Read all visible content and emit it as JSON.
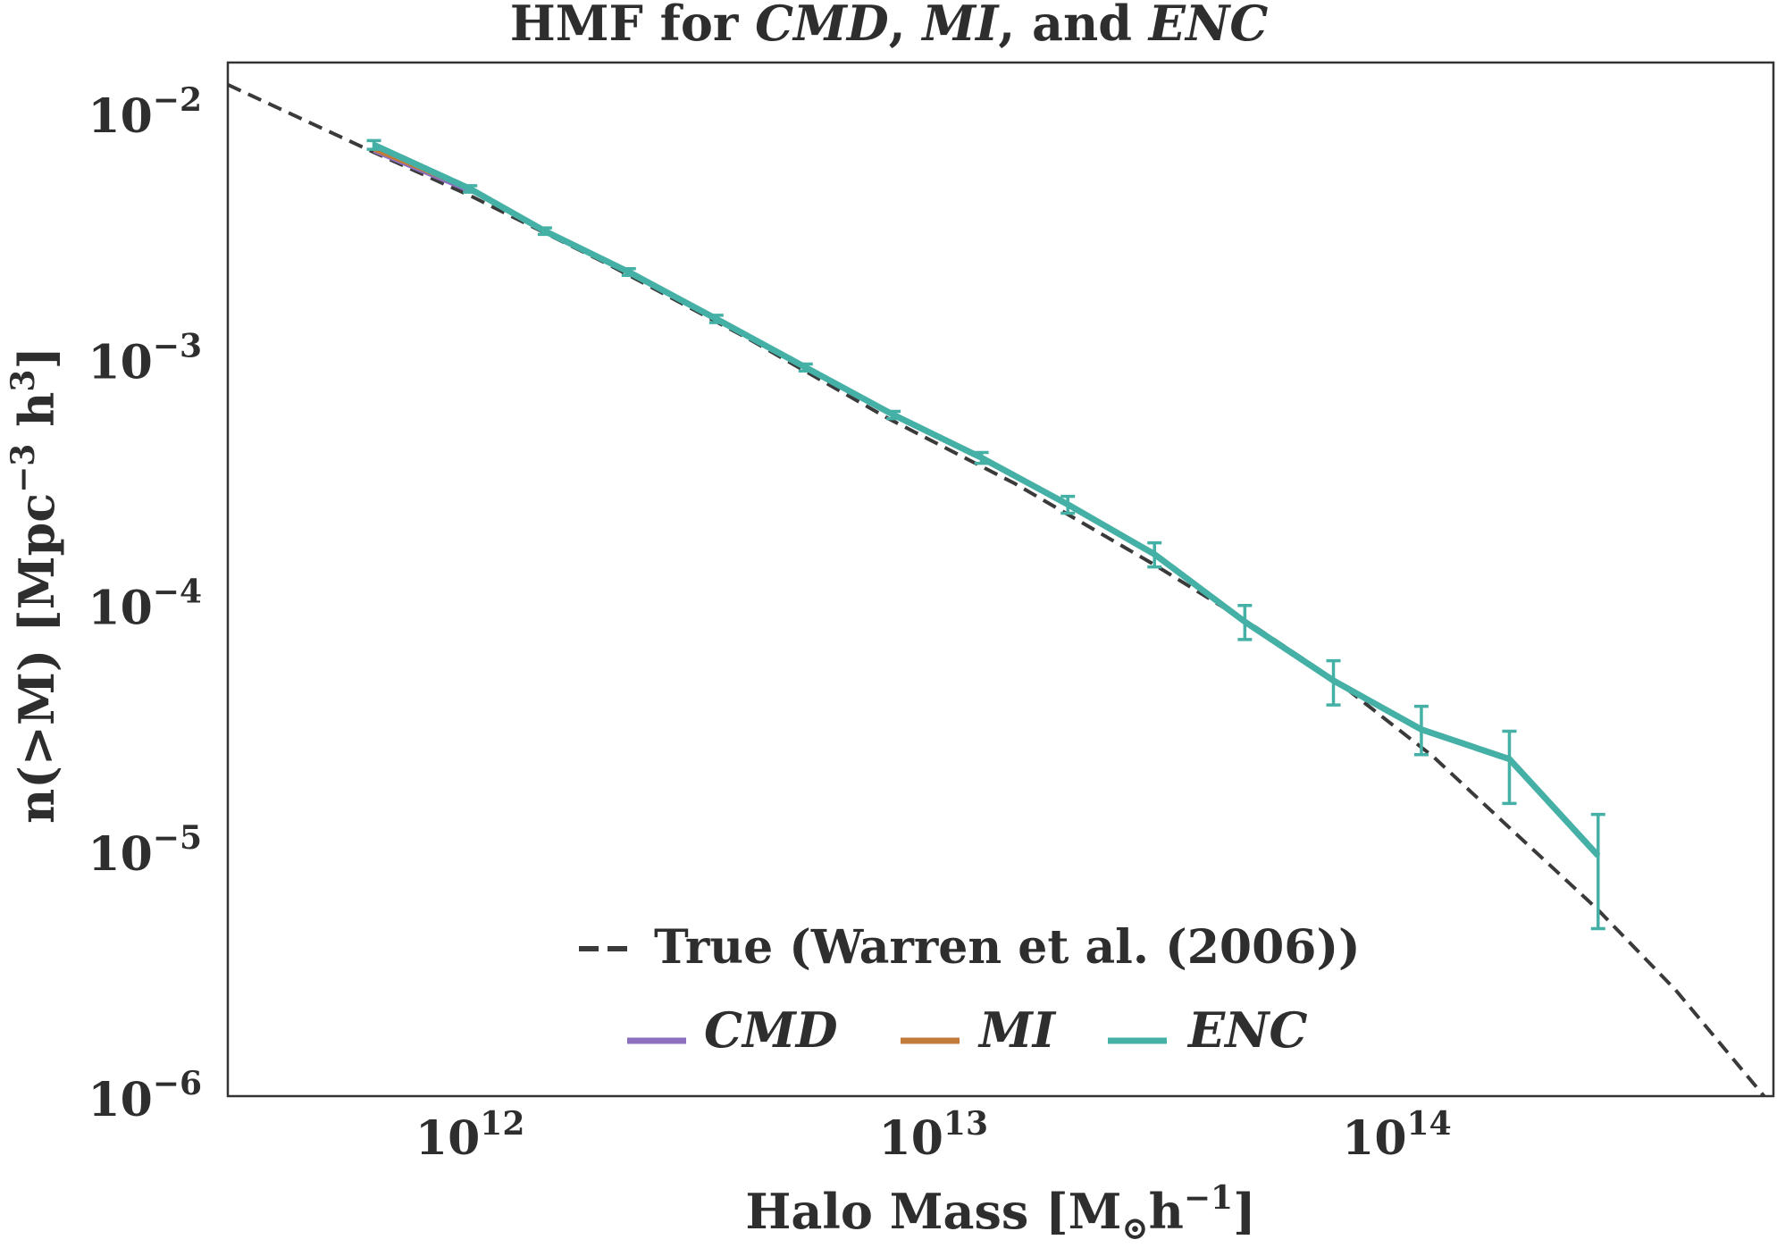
{
  "chart_data": {
    "type": "line",
    "title": {
      "prefix": "HMF for ",
      "a": "CMD",
      "sep1": ", ",
      "b": "MI",
      "sep2": ", and ",
      "c": "ENC"
    },
    "xlabel": {
      "main": "Halo Mass [M",
      "sub": "⊙",
      "h": "h",
      "exp": "−1",
      "close": "]"
    },
    "ylabel": {
      "a": "n(>M) [Mpc",
      "exp1": "−3",
      "b": " h",
      "exp2": "3",
      "c": "]"
    },
    "xscale": "log",
    "yscale": "log",
    "xlim": [
      300000000000.0,
      650000000000000.0
    ],
    "ylim": [
      1e-06,
      0.016
    ],
    "x_ticks": [
      {
        "value": 1000000000000.0,
        "base": "10",
        "exp": "12"
      },
      {
        "value": 10000000000000.0,
        "base": "10",
        "exp": "13"
      },
      {
        "value": 100000000000000.0,
        "base": "10",
        "exp": "14"
      }
    ],
    "y_ticks": [
      {
        "value": 0.01,
        "base": "10",
        "exp": "−2"
      },
      {
        "value": 0.001,
        "base": "10",
        "exp": "−3"
      },
      {
        "value": 0.0001,
        "base": "10",
        "exp": "−4"
      },
      {
        "value": 1e-05,
        "base": "10",
        "exp": "−5"
      },
      {
        "value": 1e-06,
        "base": "10",
        "exp": "−6"
      }
    ],
    "grid": false,
    "legend_position": "bottom-center",
    "true_curve": {
      "name": "True (Warren et al. (2006))",
      "style": "dashed",
      "color": "#3a3a3a",
      "x": [
        300000000000.0,
        620000000000.0,
        1000000000000.0,
        2000000000000.0,
        4000000000000.0,
        8000000000000.0,
        15000000000000.0,
        30000000000000.0,
        50000000000000.0,
        75000000000000.0,
        120000000000000.0,
        170000000000000.0,
        270000000000000.0,
        400000000000000.0,
        650000000000000.0
      ],
      "y": [
        0.013,
        0.0069,
        0.0046,
        0.0024,
        0.0012,
        0.00057,
        0.00031,
        0.000145,
        8e-05,
        4.8e-05,
        2.4e-05,
        1.3e-05,
        5.8e-06,
        2.7e-06,
        9e-07
      ]
    },
    "series": [
      {
        "name": "CMD",
        "color": "#8c6fbf",
        "x": [
          620000000000.0,
          1000000000000.0
        ],
        "y": [
          0.007,
          0.0048
        ]
      },
      {
        "name": "MI",
        "color": "#c47a38",
        "x": [
          620000000000.0,
          1000000000000.0
        ],
        "y": [
          0.0071,
          0.0049
        ]
      },
      {
        "name": "ENC",
        "color": "#45b0a5",
        "x": [
          620000000000.0,
          1000000000000.0,
          1450000000000.0,
          2200000000000.0,
          3400000000000.0,
          5300000000000.0,
          8200000000000.0,
          12700000000000.0,
          19500000000000.0,
          30000000000000.0,
          47000000000000.0,
          73000000000000.0,
          113000000000000.0,
          175000000000000.0,
          272000000000000.0
        ],
        "y": [
          0.0074,
          0.0049,
          0.0033,
          0.00225,
          0.00145,
          0.00092,
          0.00059,
          0.000395,
          0.000255,
          0.00016,
          8.5e-05,
          4.9e-05,
          3.1e-05,
          2.35e-05,
          9.5e-06
        ],
        "err_low": [
          0.0071,
          0.00475,
          0.0032,
          0.00218,
          0.0014,
          0.00089,
          0.00057,
          0.000375,
          0.000235,
          0.000142,
          7.2e-05,
          3.9e-05,
          2.45e-05,
          1.55e-05,
          4.8e-06
        ],
        "err_high": [
          0.0077,
          0.00505,
          0.0034,
          0.00232,
          0.0015,
          0.00095,
          0.00061,
          0.000415,
          0.000275,
          0.000178,
          9.9e-05,
          5.9e-05,
          3.85e-05,
          3.05e-05,
          1.4e-05
        ]
      }
    ]
  }
}
